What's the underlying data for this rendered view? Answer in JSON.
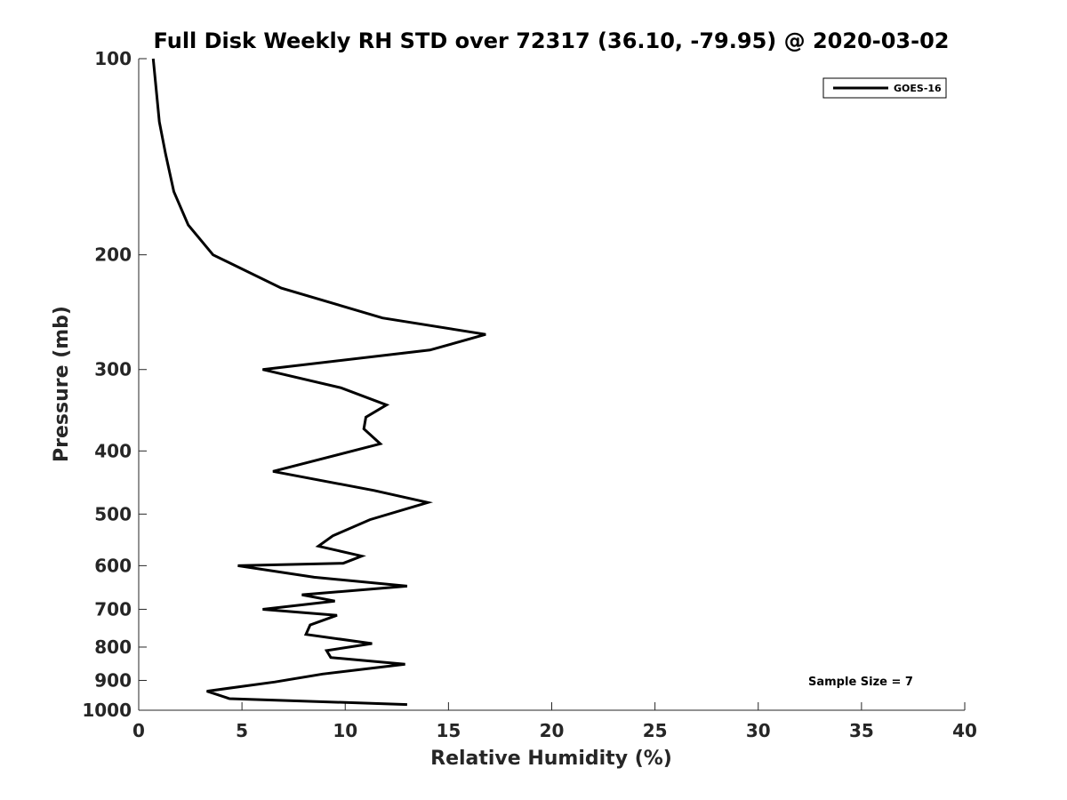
{
  "chart_data": {
    "type": "line",
    "title": "Full Disk Weekly RH STD over 72317 (36.10, -79.95) @ 2020-03-02",
    "xlabel": "Relative Humidity (%)",
    "ylabel": "Pressure (mb)",
    "xlim": [
      0,
      40
    ],
    "ylim": [
      100,
      1000
    ],
    "y_scale": "log",
    "y_reversed": true,
    "grid": false,
    "legend_position": "top-right",
    "x_ticks": [
      0,
      5,
      10,
      15,
      20,
      25,
      30,
      35,
      40
    ],
    "x_tick_labels": [
      "0",
      "5",
      "10",
      "15",
      "20",
      "25",
      "30",
      "35",
      "40"
    ],
    "y_ticks": [
      100,
      200,
      300,
      400,
      500,
      600,
      700,
      800,
      900,
      1000
    ],
    "y_tick_labels": [
      "100",
      "200",
      "300",
      "400",
      "500",
      "600",
      "700",
      "800",
      "900",
      "1000"
    ],
    "series": [
      {
        "name": "GOES-16",
        "color": "#000000",
        "points": [
          [
            0.7,
            100
          ],
          [
            1.0,
            125
          ],
          [
            1.3,
            140
          ],
          [
            1.7,
            160
          ],
          [
            2.4,
            180
          ],
          [
            3.6,
            200
          ],
          [
            6.9,
            225
          ],
          [
            11.8,
            250
          ],
          [
            16.8,
            265
          ],
          [
            14.1,
            280
          ],
          [
            6.0,
            300
          ],
          [
            9.8,
            320
          ],
          [
            12.0,
            340
          ],
          [
            11.0,
            355
          ],
          [
            10.9,
            370
          ],
          [
            11.7,
            390
          ],
          [
            6.5,
            430
          ],
          [
            11.4,
            460
          ],
          [
            14.0,
            480
          ],
          [
            11.2,
            510
          ],
          [
            9.4,
            540
          ],
          [
            8.7,
            560
          ],
          [
            10.8,
            580
          ],
          [
            9.9,
            595
          ],
          [
            4.8,
            600
          ],
          [
            8.5,
            625
          ],
          [
            13.0,
            645
          ],
          [
            7.9,
            665
          ],
          [
            9.5,
            680
          ],
          [
            6.0,
            700
          ],
          [
            9.6,
            715
          ],
          [
            8.3,
            740
          ],
          [
            8.1,
            765
          ],
          [
            11.3,
            790
          ],
          [
            9.1,
            810
          ],
          [
            9.3,
            830
          ],
          [
            12.9,
            850
          ],
          [
            8.9,
            880
          ],
          [
            6.6,
            905
          ],
          [
            3.3,
            935
          ],
          [
            4.4,
            960
          ],
          [
            13.0,
            980
          ]
        ]
      }
    ],
    "annotations": [
      "Sample Size = 7"
    ]
  }
}
